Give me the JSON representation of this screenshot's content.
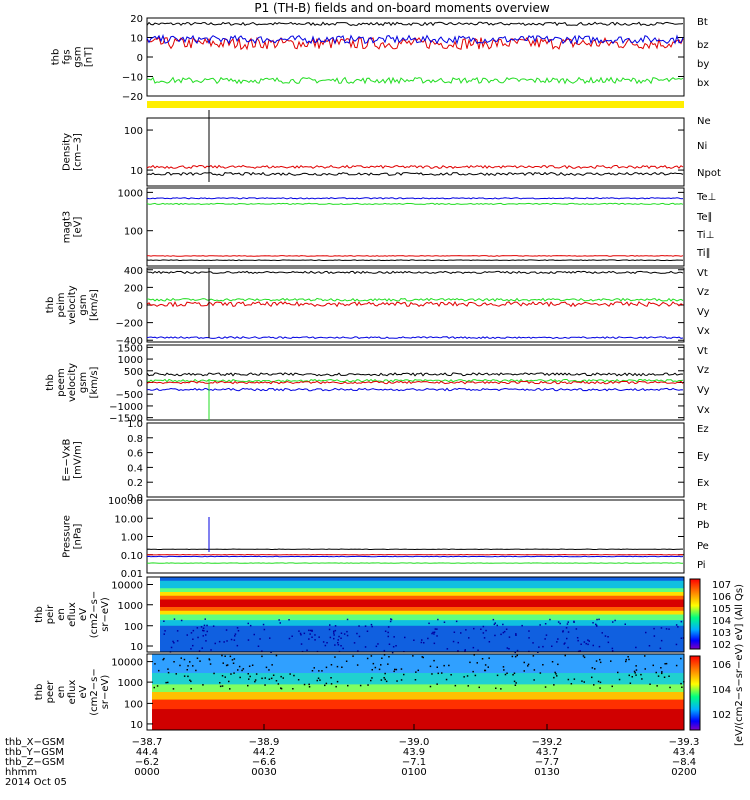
{
  "title": "P1 (TH-B) fields and on-board moments overview",
  "colors": {
    "black": "#000000",
    "red": "#e00000",
    "green": "#22dd22",
    "blue": "#0000e0"
  },
  "panels": [
    {
      "id": "fgs",
      "ylabel": [
        "thb",
        "fgs",
        "gsm",
        "[nT]"
      ],
      "type": "line",
      "ylim": [
        -20,
        20
      ],
      "ticks": [
        "20",
        "10",
        "0",
        "−10",
        "−20"
      ],
      "tickvals": [
        20,
        10,
        0,
        -10,
        -20
      ],
      "legend": [
        {
          "label": "Bt",
          "color": "black"
        },
        {
          "label": "bz",
          "color": "red"
        },
        {
          "label": "by",
          "color": "green"
        },
        {
          "label": "bx",
          "color": "blue"
        }
      ],
      "series": [
        {
          "name": "Bt",
          "color": "black",
          "level": 17,
          "noise": 0.8
        },
        {
          "name": "bz",
          "color": "red",
          "level": 7,
          "noise": 3
        },
        {
          "name": "bx",
          "color": "blue",
          "level": 9,
          "noise": 2
        },
        {
          "name": "by",
          "color": "green",
          "level": -12,
          "noise": 1.5
        }
      ]
    },
    {
      "id": "density",
      "ylabel": [
        "Density",
        "[cm−3]"
      ],
      "type": "line",
      "log": true,
      "ylim": [
        4,
        200
      ],
      "ticks": [
        "100",
        "10"
      ],
      "tickvals": [
        100,
        10
      ],
      "legend": [
        {
          "label": "Ne",
          "color": "red"
        },
        {
          "label": "Ni",
          "color": "black"
        },
        {
          "label": "Npot",
          "color": "blue"
        }
      ],
      "series": [
        {
          "name": "Ne",
          "color": "red",
          "level": 12,
          "noise": 0.12
        },
        {
          "name": "Ni",
          "color": "black",
          "level": 8,
          "noise": 0.12
        }
      ]
    },
    {
      "id": "temp",
      "ylabel": [
        "magt3",
        "[eV]"
      ],
      "type": "line",
      "log": true,
      "ylim": [
        12,
        1300
      ],
      "ticks": [
        "1000",
        "100"
      ],
      "tickvals": [
        1000,
        100
      ],
      "legend": [
        {
          "label": "Te⊥",
          "color": "red"
        },
        {
          "label": "Te∥",
          "color": "black"
        },
        {
          "label": "Ti⊥",
          "color": "blue"
        },
        {
          "label": "Ti∥",
          "color": "green"
        }
      ],
      "series": [
        {
          "name": "Ti⊥",
          "color": "blue",
          "level": 700,
          "noise": 0.05
        },
        {
          "name": "Ti∥",
          "color": "green",
          "level": 500,
          "noise": 0.05
        },
        {
          "name": "Te⊥",
          "color": "red",
          "level": 22,
          "noise": 0.03
        },
        {
          "name": "Te∥",
          "color": "black",
          "level": 17,
          "noise": 0.03
        }
      ]
    },
    {
      "id": "peim",
      "ylabel": [
        "thb",
        "peim",
        "velocity",
        "gsm",
        "[km/s]"
      ],
      "type": "line",
      "ylim": [
        -420,
        420
      ],
      "ticks": [
        "400",
        "200",
        "0",
        "−200",
        "−400"
      ],
      "tickvals": [
        400,
        200,
        0,
        -200,
        -400
      ],
      "legend": [
        {
          "label": "Vt",
          "color": "black"
        },
        {
          "label": "Vz",
          "color": "red"
        },
        {
          "label": "Vy",
          "color": "green"
        },
        {
          "label": "Vx",
          "color": "blue"
        }
      ],
      "series": [
        {
          "name": "Vt",
          "color": "black",
          "level": 370,
          "noise": 12
        },
        {
          "name": "Vy",
          "color": "green",
          "level": 60,
          "noise": 15
        },
        {
          "name": "Vz",
          "color": "red",
          "level": 10,
          "noise": 25
        },
        {
          "name": "Vx",
          "color": "blue",
          "level": -370,
          "noise": 10
        }
      ]
    },
    {
      "id": "peem",
      "ylabel": [
        "thb",
        "peem",
        "velocity",
        "gsm",
        "[km/s]"
      ],
      "type": "line",
      "ylim": [
        -1600,
        1600
      ],
      "ticks": [
        "1500",
        "1000",
        "500",
        "0",
        "−500",
        "−1000",
        "−1500"
      ],
      "tickvals": [
        1500,
        1000,
        500,
        0,
        -500,
        -1000,
        -1500
      ],
      "legend": [
        {
          "label": "Vt",
          "color": "black"
        },
        {
          "label": "Vz",
          "color": "red"
        },
        {
          "label": "Vy",
          "color": "green"
        },
        {
          "label": "Vx",
          "color": "blue"
        }
      ],
      "series": [
        {
          "name": "Vt",
          "color": "black",
          "level": 350,
          "noise": 60
        },
        {
          "name": "Vy",
          "color": "green",
          "level": 80,
          "noise": 50
        },
        {
          "name": "Vz",
          "color": "red",
          "level": 0,
          "noise": 50
        },
        {
          "name": "Vx",
          "color": "blue",
          "level": -300,
          "noise": 50
        }
      ]
    },
    {
      "id": "efield",
      "ylabel": [
        "E=−VxB",
        "[mV/m]"
      ],
      "type": "line",
      "ylim": [
        0,
        1
      ],
      "ticks": [
        "1.0",
        "0.8",
        "0.6",
        "0.4",
        "0.2",
        "0.0"
      ],
      "tickvals": [
        1,
        0.8,
        0.6,
        0.4,
        0.2,
        0
      ],
      "legend": [
        {
          "label": "Ez",
          "color": "red"
        },
        {
          "label": "Ey",
          "color": "green"
        },
        {
          "label": "Ex",
          "color": "blue"
        }
      ],
      "series": []
    },
    {
      "id": "pressure",
      "ylabel": [
        "Pressure",
        "[nPa]"
      ],
      "type": "line",
      "log": true,
      "ylim": [
        0.01,
        100
      ],
      "ticks": [
        "100.00",
        "10.00",
        "1.00",
        "0.10",
        "0.01"
      ],
      "tickvals": [
        100,
        10,
        1,
        0.1,
        0.01
      ],
      "legend": [
        {
          "label": "Pt",
          "color": "black"
        },
        {
          "label": "Pb",
          "color": "red"
        },
        {
          "label": "Pe",
          "color": "green"
        },
        {
          "label": "Pi",
          "color": "blue"
        }
      ],
      "series": [
        {
          "name": "Pt",
          "color": "black",
          "level": 0.2,
          "noise": 0.04
        },
        {
          "name": "Pb",
          "color": "red",
          "level": 0.1,
          "noise": 0.04
        },
        {
          "name": "Pi",
          "color": "blue",
          "level": 0.08,
          "noise": 0.04
        },
        {
          "name": "Pe",
          "color": "green",
          "level": 0.035,
          "noise": 0.04
        }
      ]
    },
    {
      "id": "peir",
      "ylabel": [
        "thb",
        "peir",
        "en",
        "eflux",
        "eV",
        "(cm2−s−",
        "sr−eV)"
      ],
      "type": "spectrogram",
      "ticks": [
        "10000",
        "1000",
        "100",
        "10"
      ],
      "band_center": 0.35
    },
    {
      "id": "peer",
      "ylabel": [
        "thb",
        "peer",
        "en",
        "eflux",
        "eV",
        "(cm2−s−",
        "sr−eV)"
      ],
      "type": "spectrogram",
      "ticks": [
        "10000",
        "1000",
        "100",
        "10"
      ],
      "band_center": 0.8
    }
  ],
  "colorbar": {
    "label": "[eV/(cm2−s−sr−eV) eV] (All Qs)",
    "ticks_top": [
      "107",
      "106",
      "105",
      "104",
      "103",
      "102"
    ],
    "ticks_bottom": [
      "106",
      "104",
      "102"
    ]
  },
  "xaxis": {
    "rows": [
      {
        "label": "thb_X−GSM",
        "values": [
          "−38.7",
          "−38.9",
          "−39.0",
          "−39.2",
          "−39.3"
        ]
      },
      {
        "label": "thb_Y−GSM",
        "values": [
          "44.4",
          "44.2",
          "43.9",
          "43.7",
          "43.4"
        ]
      },
      {
        "label": "thb_Z−GSM",
        "values": [
          "−6.2",
          "−6.6",
          "−7.1",
          "−7.7",
          "−8.4"
        ]
      },
      {
        "label": "hhmm",
        "values": [
          "0000",
          "0030",
          "0100",
          "0130",
          "0200"
        ]
      }
    ],
    "date": "2014 Oct 05"
  },
  "chart_data": {
    "type": "line",
    "title": "P1 (TH-B) fields and on-board moments overview",
    "x": [
      "0000",
      "0030",
      "0100",
      "0130",
      "0200"
    ],
    "xlabel": "hhmm",
    "series": [
      {
        "name": "Bt",
        "values": [
          17,
          17,
          17,
          17,
          17
        ]
      },
      {
        "name": "bz",
        "values": [
          8,
          6,
          7,
          5,
          10
        ]
      },
      {
        "name": "by",
        "values": [
          -12,
          -11,
          -10,
          -10,
          -10
        ]
      },
      {
        "name": "bx",
        "values": [
          9,
          10,
          9,
          11,
          13
        ]
      },
      {
        "name": "Ne",
        "values": [
          12,
          13,
          12,
          11,
          10
        ]
      },
      {
        "name": "Ni",
        "values": [
          8,
          9,
          8,
          8,
          8
        ]
      },
      {
        "name": "peim Vt",
        "values": [
          370,
          370,
          370,
          370,
          370
        ]
      },
      {
        "name": "peim Vx",
        "values": [
          -370,
          -370,
          -370,
          -370,
          -370
        ]
      }
    ]
  }
}
